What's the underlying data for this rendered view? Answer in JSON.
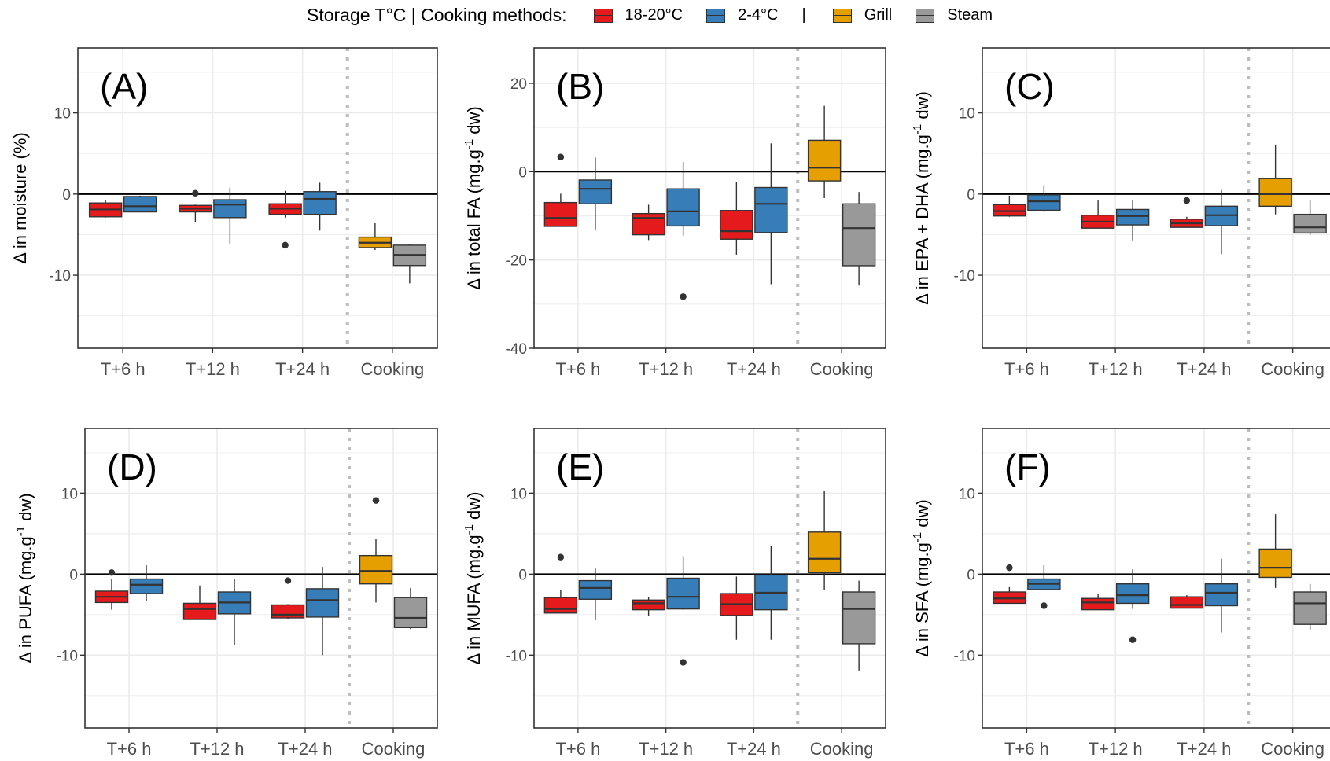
{
  "legend": {
    "title": "Storage T°C | Cooking methods:",
    "separator": "|",
    "items": [
      {
        "label": "18-20°C",
        "color": "#e41a1c"
      },
      {
        "label": "2-4°C",
        "color": "#377eb8"
      },
      {
        "label": "Grill",
        "color": "#e69f00"
      },
      {
        "label": "Steam",
        "color": "#999999"
      }
    ]
  },
  "chart_data": [
    {
      "type": "box",
      "tag": "(A)",
      "ylabel_pre": "Δ  in moisture  (%)",
      "ylabel_sup": "",
      "ylabel_post": "",
      "ylim": [
        -19,
        18
      ],
      "yticks": [
        -10,
        0,
        10
      ],
      "categories": [
        "T+6 h",
        "T+12 h",
        "T+24 h",
        "Cooking"
      ],
      "series": [
        {
          "name": "18-20°C",
          "color": "#e41a1c",
          "boxes": [
            {
              "x": "T+6 h",
              "min": -2.9,
              "q1": -2.8,
              "median": -1.9,
              "q3": -1.1,
              "max": -0.7
            },
            {
              "x": "T+12 h",
              "min": -3.5,
              "q1": -2.2,
              "median": -1.8,
              "q3": -1.4,
              "max": -1.3,
              "outliers": [
                0.1
              ]
            },
            {
              "x": "T+24 h",
              "min": -2.9,
              "q1": -2.5,
              "median": -1.8,
              "q3": -1.2,
              "max": 0.4,
              "outliers": [
                -6.3
              ]
            }
          ]
        },
        {
          "name": "2-4°C",
          "color": "#377eb8",
          "boxes": [
            {
              "x": "T+6 h",
              "min": -2.2,
              "q1": -2.2,
              "median": -1.5,
              "q3": -0.3,
              "max": -0.2
            },
            {
              "x": "T+12 h",
              "min": -6.1,
              "q1": -2.9,
              "median": -1.3,
              "q3": -0.7,
              "max": 0.8
            },
            {
              "x": "T+24 h",
              "min": -4.5,
              "q1": -2.5,
              "median": -0.6,
              "q3": 0.3,
              "max": 1.4
            }
          ]
        },
        {
          "name": "Grill",
          "color": "#e69f00",
          "boxes": [
            {
              "x": "Cooking",
              "min": -6.9,
              "q1": -6.6,
              "median": -6.0,
              "q3": -5.3,
              "max": -3.6
            }
          ]
        },
        {
          "name": "Steam",
          "color": "#999999",
          "boxes": [
            {
              "x": "Cooking",
              "min": -11.0,
              "q1": -8.8,
              "median": -7.5,
              "q3": -6.3,
              "max": -6.2
            }
          ]
        }
      ]
    },
    {
      "type": "box",
      "tag": "(B)",
      "ylabel_pre": "Δ  in total FA  (mg.g",
      "ylabel_sup": "-1",
      "ylabel_post": " dw)",
      "ylim": [
        -40,
        28
      ],
      "yticks": [
        -40,
        -20,
        0,
        20
      ],
      "categories": [
        "T+6 h",
        "T+12 h",
        "T+24 h",
        "Cooking"
      ],
      "series": [
        {
          "name": "18-20°C",
          "color": "#e41a1c",
          "boxes": [
            {
              "x": "T+6 h",
              "min": -12.4,
              "q1": -12.4,
              "median": -10.5,
              "q3": -7.0,
              "max": -5.0,
              "outliers": [
                3.3
              ]
            },
            {
              "x": "T+12 h",
              "min": -15.5,
              "q1": -14.3,
              "median": -10.5,
              "q3": -9.5,
              "max": -7.5
            },
            {
              "x": "T+24 h",
              "min": -18.8,
              "q1": -15.3,
              "median": -13.5,
              "q3": -8.8,
              "max": -2.3
            }
          ]
        },
        {
          "name": "2-4°C",
          "color": "#377eb8",
          "boxes": [
            {
              "x": "T+6 h",
              "min": -13.1,
              "q1": -7.3,
              "median": -3.9,
              "q3": -1.9,
              "max": 3.2
            },
            {
              "x": "T+12 h",
              "min": -14.5,
              "q1": -12.3,
              "median": -9.0,
              "q3": -3.9,
              "max": 2.2,
              "outliers": [
                -28.3
              ]
            },
            {
              "x": "T+24 h",
              "min": -25.5,
              "q1": -13.8,
              "median": -7.3,
              "q3": -3.6,
              "max": 6.4
            }
          ]
        },
        {
          "name": "Grill",
          "color": "#e69f00",
          "boxes": [
            {
              "x": "Cooking",
              "min": -6.0,
              "q1": -2.1,
              "median": 0.9,
              "q3": 7.1,
              "max": 14.9
            }
          ]
        },
        {
          "name": "Steam",
          "color": "#999999",
          "boxes": [
            {
              "x": "Cooking",
              "min": -25.8,
              "q1": -21.3,
              "median": -12.8,
              "q3": -7.3,
              "max": -4.6
            }
          ]
        }
      ]
    },
    {
      "type": "box",
      "tag": "(C)",
      "ylabel_pre": "Δ  in EPA + DHA  (mg.g",
      "ylabel_sup": "-1",
      "ylabel_post": " dw)",
      "ylim": [
        -19,
        18
      ],
      "yticks": [
        -10,
        0,
        10
      ],
      "categories": [
        "T+6 h",
        "T+12 h",
        "T+24 h",
        "Cooking"
      ],
      "series": [
        {
          "name": "18-20°C",
          "color": "#e41a1c",
          "boxes": [
            {
              "x": "T+6 h",
              "min": -2.8,
              "q1": -2.7,
              "median": -2.1,
              "q3": -1.3,
              "max": -0.2
            },
            {
              "x": "T+12 h",
              "min": -4.2,
              "q1": -4.2,
              "median": -3.4,
              "q3": -2.6,
              "max": -0.8
            },
            {
              "x": "T+24 h",
              "min": -4.1,
              "q1": -4.1,
              "median": -3.6,
              "q3": -3.1,
              "max": -2.8,
              "outliers": [
                -0.8
              ]
            }
          ]
        },
        {
          "name": "2-4°C",
          "color": "#377eb8",
          "boxes": [
            {
              "x": "T+6 h",
              "min": -2.2,
              "q1": -2.0,
              "median": -0.9,
              "q3": -0.1,
              "max": 1.1
            },
            {
              "x": "T+12 h",
              "min": -5.7,
              "q1": -3.8,
              "median": -2.7,
              "q3": -1.9,
              "max": -0.8
            },
            {
              "x": "T+24 h",
              "min": -7.4,
              "q1": -3.9,
              "median": -2.6,
              "q3": -1.5,
              "max": 0.5
            }
          ]
        },
        {
          "name": "Grill",
          "color": "#e69f00",
          "boxes": [
            {
              "x": "Cooking",
              "min": -2.5,
              "q1": -1.5,
              "median": 0.0,
              "q3": 1.9,
              "max": 6.1
            }
          ]
        },
        {
          "name": "Steam",
          "color": "#999999",
          "boxes": [
            {
              "x": "Cooking",
              "min": -5.0,
              "q1": -4.8,
              "median": -4.1,
              "q3": -2.5,
              "max": -0.7
            }
          ]
        }
      ]
    },
    {
      "type": "box",
      "tag": "(D)",
      "ylabel_pre": "Δ  in PUFA  (mg.g",
      "ylabel_sup": "-1",
      "ylabel_post": " dw)",
      "ylim": [
        -19,
        18
      ],
      "yticks": [
        -10,
        0,
        10
      ],
      "categories": [
        "T+6 h",
        "T+12 h",
        "T+24 h",
        "Cooking"
      ],
      "series": [
        {
          "name": "18-20°C",
          "color": "#e41a1c",
          "boxes": [
            {
              "x": "T+6 h",
              "min": -4.4,
              "q1": -3.5,
              "median": -2.8,
              "q3": -2.1,
              "max": -0.6,
              "outliers": [
                0.2
              ]
            },
            {
              "x": "T+12 h",
              "min": -5.6,
              "q1": -5.6,
              "median": -4.3,
              "q3": -3.6,
              "max": -1.4
            },
            {
              "x": "T+24 h",
              "min": -5.6,
              "q1": -5.4,
              "median": -5.0,
              "q3": -3.8,
              "max": -3.7,
              "outliers": [
                -0.8
              ]
            }
          ]
        },
        {
          "name": "2-4°C",
          "color": "#377eb8",
          "boxes": [
            {
              "x": "T+6 h",
              "min": -3.3,
              "q1": -2.4,
              "median": -1.3,
              "q3": -0.6,
              "max": 1.1
            },
            {
              "x": "T+12 h",
              "min": -8.8,
              "q1": -4.9,
              "median": -3.5,
              "q3": -2.2,
              "max": -0.6
            },
            {
              "x": "T+24 h",
              "min": -10.0,
              "q1": -5.3,
              "median": -3.2,
              "q3": -1.8,
              "max": 0.9
            }
          ]
        },
        {
          "name": "Grill",
          "color": "#e69f00",
          "boxes": [
            {
              "x": "Cooking",
              "min": -3.5,
              "q1": -1.2,
              "median": 0.4,
              "q3": 2.3,
              "max": 4.4,
              "outliers": [
                9.1
              ]
            }
          ]
        },
        {
          "name": "Steam",
          "color": "#999999",
          "boxes": [
            {
              "x": "Cooking",
              "min": -6.8,
              "q1": -6.6,
              "median": -5.4,
              "q3": -2.9,
              "max": -1.7
            }
          ]
        }
      ]
    },
    {
      "type": "box",
      "tag": "(E)",
      "ylabel_pre": "Δ  in MUFA  (mg.g",
      "ylabel_sup": "-1",
      "ylabel_post": " dw)",
      "ylim": [
        -19,
        18
      ],
      "yticks": [
        -10,
        0,
        10
      ],
      "categories": [
        "T+6 h",
        "T+12 h",
        "T+24 h",
        "Cooking"
      ],
      "series": [
        {
          "name": "18-20°C",
          "color": "#e41a1c",
          "boxes": [
            {
              "x": "T+6 h",
              "min": -4.8,
              "q1": -4.8,
              "median": -4.3,
              "q3": -2.9,
              "max": -2.0,
              "outliers": [
                2.1
              ]
            },
            {
              "x": "T+12 h",
              "min": -5.2,
              "q1": -4.4,
              "median": -3.6,
              "q3": -3.2,
              "max": -2.8
            },
            {
              "x": "T+24 h",
              "min": -8.1,
              "q1": -5.1,
              "median": -3.7,
              "q3": -2.4,
              "max": -0.3
            }
          ]
        },
        {
          "name": "2-4°C",
          "color": "#377eb8",
          "boxes": [
            {
              "x": "T+6 h",
              "min": -5.7,
              "q1": -3.1,
              "median": -1.7,
              "q3": -0.8,
              "max": 0.7
            },
            {
              "x": "T+12 h",
              "min": -4.4,
              "q1": -4.3,
              "median": -2.8,
              "q3": -0.5,
              "max": 2.2,
              "outliers": [
                -10.9
              ]
            },
            {
              "x": "T+24 h",
              "min": -8.1,
              "q1": -4.4,
              "median": -2.3,
              "q3": -0.1,
              "max": 3.5
            }
          ]
        },
        {
          "name": "Grill",
          "color": "#e69f00",
          "boxes": [
            {
              "x": "Cooking",
              "min": -2.0,
              "q1": 0.2,
              "median": 1.9,
              "q3": 5.2,
              "max": 10.3
            }
          ]
        },
        {
          "name": "Steam",
          "color": "#999999",
          "boxes": [
            {
              "x": "Cooking",
              "min": -11.9,
              "q1": -8.6,
              "median": -4.3,
              "q3": -2.2,
              "max": -0.8
            }
          ]
        }
      ]
    },
    {
      "type": "box",
      "tag": "(F)",
      "ylabel_pre": "Δ  in SFA  (mg.g",
      "ylabel_sup": "-1",
      "ylabel_post": " dw)",
      "ylim": [
        -19,
        18
      ],
      "yticks": [
        -10,
        0,
        10
      ],
      "categories": [
        "T+6 h",
        "T+12 h",
        "T+24 h",
        "Cooking"
      ],
      "series": [
        {
          "name": "18-20°C",
          "color": "#e41a1c",
          "boxes": [
            {
              "x": "T+6 h",
              "min": -3.6,
              "q1": -3.6,
              "median": -3.0,
              "q3": -2.2,
              "max": -1.6,
              "outliers": [
                0.8
              ]
            },
            {
              "x": "T+12 h",
              "min": -4.4,
              "q1": -4.4,
              "median": -3.5,
              "q3": -3.0,
              "max": -2.4
            },
            {
              "x": "T+24 h",
              "min": -4.2,
              "q1": -4.2,
              "median": -3.8,
              "q3": -2.8,
              "max": -2.6
            }
          ]
        },
        {
          "name": "2-4°C",
          "color": "#377eb8",
          "boxes": [
            {
              "x": "T+6 h",
              "min": -1.9,
              "q1": -1.9,
              "median": -1.2,
              "q3": -0.6,
              "max": 1.1,
              "outliers": [
                -3.9
              ]
            },
            {
              "x": "T+12 h",
              "min": -4.3,
              "q1": -3.6,
              "median": -2.6,
              "q3": -1.2,
              "max": 0.6,
              "outliers": [
                -8.1
              ]
            },
            {
              "x": "T+24 h",
              "min": -7.2,
              "q1": -3.9,
              "median": -2.3,
              "q3": -1.2,
              "max": 1.9
            }
          ]
        },
        {
          "name": "Grill",
          "color": "#e69f00",
          "boxes": [
            {
              "x": "Cooking",
              "min": -1.7,
              "q1": -0.4,
              "median": 0.8,
              "q3": 3.1,
              "max": 7.4
            }
          ]
        },
        {
          "name": "Steam",
          "color": "#999999",
          "boxes": [
            {
              "x": "Cooking",
              "min": -6.9,
              "q1": -6.2,
              "median": -3.6,
              "q3": -2.2,
              "max": -1.2
            }
          ]
        }
      ]
    }
  ]
}
